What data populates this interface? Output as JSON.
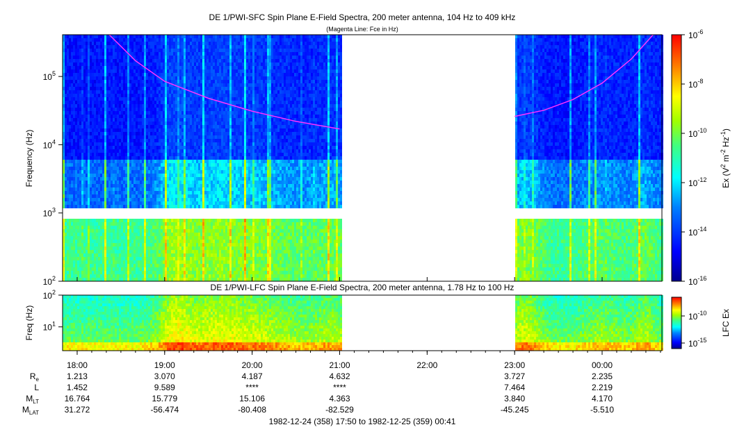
{
  "chart_data": [
    {
      "type": "heatmap",
      "panel": "SFC",
      "title": "DE 1/PWI-SFC  Spin Plane E-Field Spectra, 200 meter antenna, 104 Hz to 409 kHz",
      "subtitle": "(Magenta Line: Fce in Hz)",
      "ylabel": "Frequency (Hz)",
      "y_scale": "log",
      "ylim": [
        100,
        409000
      ],
      "y_ticks": [
        {
          "value": 100,
          "base": "10",
          "exp": "2"
        },
        {
          "value": 1000,
          "base": "10",
          "exp": "3"
        },
        {
          "value": 10000,
          "base": "10",
          "exp": "4"
        },
        {
          "value": 100000,
          "base": "10",
          "exp": "5"
        }
      ],
      "colorbar": {
        "label_parts": {
          "pre": "Ex (V",
          "sup1": "2",
          "mid": " m",
          "sup2": "-2",
          "mid2": " Hz",
          "sup3": "-1",
          "post": ")"
        },
        "scale": "log",
        "range": [
          1e-16,
          1e-06
        ],
        "ticks": [
          {
            "value": 1e-06,
            "base": "10",
            "exp": "-6"
          },
          {
            "value": 1e-08,
            "base": "10",
            "exp": "-8"
          },
          {
            "value": 1e-10,
            "base": "10",
            "exp": "-10"
          },
          {
            "value": 1e-12,
            "base": "10",
            "exp": "-12"
          },
          {
            "value": 1e-14,
            "base": "10",
            "exp": "-14"
          },
          {
            "value": 1e-16,
            "base": "10",
            "exp": "-16"
          }
        ]
      },
      "data_gap": [
        "21:02",
        "23:00"
      ],
      "fce_line": {
        "color": "#ff33ff",
        "segments": [
          {
            "t": [
              "18:22",
              "18:40",
              "19:00",
              "19:30",
              "20:00",
              "20:30",
              "21:00"
            ],
            "f": [
              409000,
              170000,
              85000,
              48000,
              31000,
              22000,
              17000
            ]
          },
          {
            "t": [
              "23:00",
              "23:20",
              "23:40",
              "00:00",
              "00:20",
              "00:35"
            ],
            "f": [
              26000,
              32000,
              46000,
              80000,
              180000,
              409000
            ]
          }
        ]
      }
    },
    {
      "type": "heatmap",
      "panel": "LFC",
      "title": "DE 1/PWI-LFC  Spin Plane E-Field Spectra, 200 meter antenna, 1.78 Hz to 100 Hz",
      "ylabel": "Freq (Hz)",
      "y_scale": "log",
      "ylim": [
        1.78,
        100
      ],
      "y_ticks": [
        {
          "value": 10,
          "base": "10",
          "exp": "1"
        },
        {
          "value": 100,
          "base": "10",
          "exp": "2"
        }
      ],
      "colorbar": {
        "label": "LFC Ex",
        "scale": "log",
        "ticks": [
          {
            "value": 1e-10,
            "base": "10",
            "exp": "-10"
          },
          {
            "value": 1e-15,
            "base": "10",
            "exp": "-15"
          }
        ]
      },
      "data_gap": [
        "21:02",
        "23:00"
      ]
    }
  ],
  "x_axis": {
    "time_range_label": "1982-12-24 (358) 17:50 to 1982-12-25 (359) 00:41",
    "ticks": [
      "18:00",
      "19:00",
      "20:00",
      "21:00",
      "22:00",
      "23:00",
      "00:00"
    ]
  },
  "ephemeris": {
    "rows": [
      {
        "label": "R",
        "sub": "e",
        "values": [
          "1.213",
          "3.070",
          "4.187",
          "4.632",
          "",
          "3.727",
          "2.235"
        ]
      },
      {
        "label": "L",
        "sub": "",
        "values": [
          "1.452",
          "9.589",
          "****",
          "****",
          "",
          "7.464",
          "2.219"
        ]
      },
      {
        "label": "M",
        "sub": "LT",
        "values": [
          "16.764",
          "15.779",
          "15.106",
          "4.363",
          "",
          "3.840",
          "4.170"
        ]
      },
      {
        "label": "M",
        "sub": "LAT",
        "values": [
          "31.272",
          "-56.474",
          "-80.408",
          "-82.529",
          "",
          "-45.245",
          "-5.510"
        ]
      }
    ]
  }
}
